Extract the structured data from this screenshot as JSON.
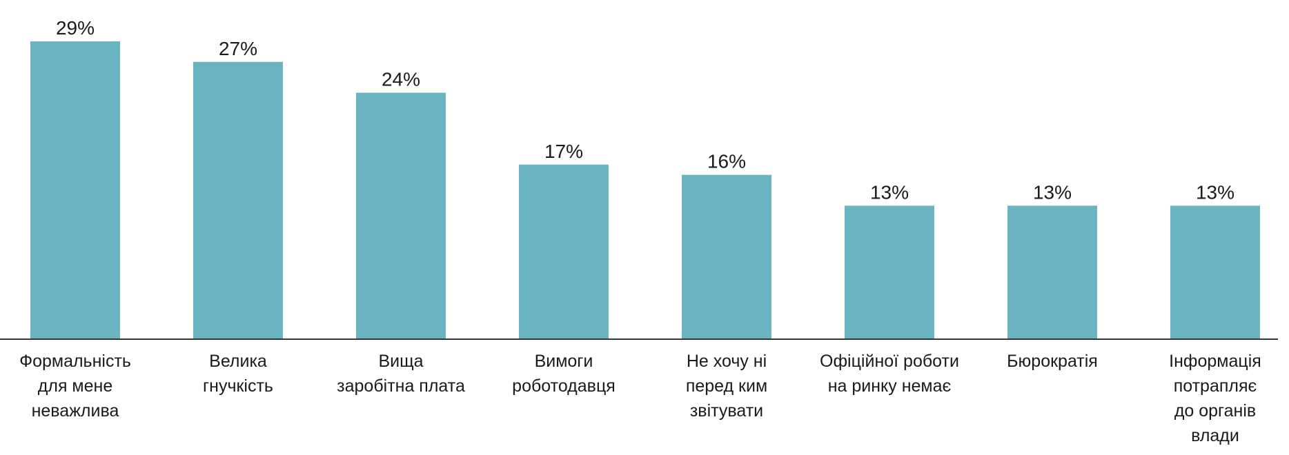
{
  "chart_data": {
    "type": "bar",
    "title": "",
    "xlabel": "",
    "ylabel": "",
    "ylim": [
      0,
      29
    ],
    "grid": false,
    "legend": "none",
    "bar_color": "#6ab3c1",
    "axis_color": "#333333",
    "unit": "%",
    "categories": [
      "Формальність для мене неважлива",
      "Велика гнучкість",
      "Вища заробітна плата",
      "Вимоги роботодавця",
      "Не хочу ні перед ким звітувати",
      "Офіційної роботи на ринку немає",
      "Бюрократія",
      "Інформація потрапляє до органів влади"
    ],
    "category_lines": [
      [
        "Формальність",
        "для мене",
        "неважлива"
      ],
      [
        "Велика",
        "гнучкість"
      ],
      [
        "Вища",
        "заробітна плата"
      ],
      [
        "Вимоги",
        "роботодавця"
      ],
      [
        "Не хочу ні",
        "перед ким",
        "звітувати"
      ],
      [
        "Офіційної роботи",
        "на ринку немає"
      ],
      [
        "Бюрократія"
      ],
      [
        "Інформація",
        "потрапляє",
        "до органів",
        "влади"
      ]
    ],
    "values": [
      29,
      27,
      24,
      17,
      16,
      13,
      13,
      13
    ],
    "value_labels": [
      "29%",
      "27%",
      "24%",
      "17%",
      "16%",
      "13%",
      "13%",
      "13%"
    ]
  }
}
